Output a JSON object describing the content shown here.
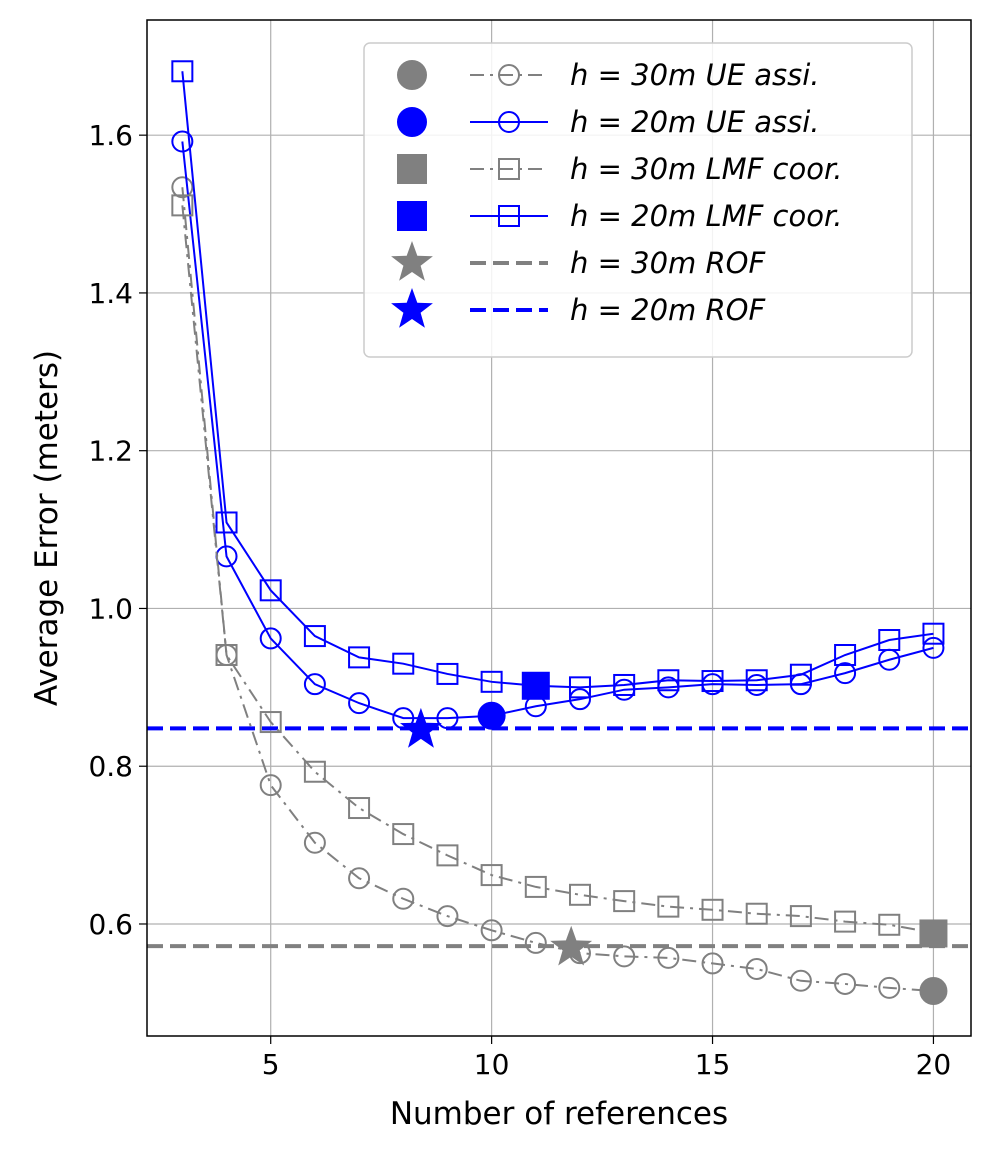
{
  "chart_data": {
    "type": "line",
    "title": "",
    "xlabel": "Number of references",
    "ylabel": "Average Error (meters)",
    "xlim": [
      2.2,
      20.85
    ],
    "ylim": [
      0.458,
      1.746
    ],
    "xticks": [
      5,
      10,
      15,
      20
    ],
    "yticks": [
      0.6,
      0.8,
      1.0,
      1.2,
      1.4,
      1.6
    ],
    "ytick_labels": [
      "0.6",
      "0.8",
      "1.0",
      "1.2",
      "1.4",
      "1.6"
    ],
    "xtick_labels": [
      "5",
      "10",
      "15",
      "20"
    ],
    "grid": true,
    "legend_position": "top-right",
    "x": [
      3,
      4,
      5,
      6,
      7,
      8,
      9,
      10,
      11,
      12,
      13,
      14,
      15,
      16,
      17,
      18,
      19,
      20
    ],
    "series": [
      {
        "name": "h = 30m UE assi.",
        "color": "#808080",
        "style": "dashdot",
        "marker": "circle",
        "values": [
          1.534,
          0.941,
          0.776,
          0.703,
          0.658,
          0.632,
          0.61,
          0.592,
          0.576,
          0.563,
          0.559,
          0.557,
          0.55,
          0.543,
          0.528,
          0.524,
          0.519,
          0.515
        ]
      },
      {
        "name": "h = 20m UE assi.",
        "color": "#0000ff",
        "style": "solid",
        "marker": "circle",
        "values": [
          1.592,
          1.066,
          0.962,
          0.904,
          0.88,
          0.861,
          0.861,
          0.864,
          0.876,
          0.885,
          0.897,
          0.9,
          0.904,
          0.903,
          0.904,
          0.918,
          0.935,
          0.95
        ]
      },
      {
        "name": "h = 30m LMF coor.",
        "color": "#808080",
        "style": "dashdot",
        "marker": "square",
        "values": [
          1.511,
          0.941,
          0.856,
          0.793,
          0.747,
          0.714,
          0.687,
          0.662,
          0.647,
          0.637,
          0.629,
          0.622,
          0.618,
          0.613,
          0.61,
          0.603,
          0.599,
          0.589
        ]
      },
      {
        "name": "h = 20m LMF coor.",
        "color": "#0000ff",
        "style": "solid",
        "marker": "square",
        "values": [
          1.681,
          1.109,
          1.023,
          0.965,
          0.938,
          0.93,
          0.917,
          0.907,
          0.902,
          0.9,
          0.903,
          0.909,
          0.908,
          0.909,
          0.916,
          0.941,
          0.96,
          0.968
        ]
      }
    ],
    "hlines": [
      {
        "name": "h = 30m ROF",
        "color": "#808080",
        "y": 0.572
      },
      {
        "name": "h = 20m ROF",
        "color": "#0000ff",
        "y": 0.848
      }
    ],
    "highlights": [
      {
        "series": "h = 30m UE assi.",
        "marker": "circle",
        "color": "#808080",
        "x": 20,
        "y": 0.515
      },
      {
        "series": "h = 20m UE assi.",
        "marker": "circle",
        "color": "#0000ff",
        "x": 10,
        "y": 0.864
      },
      {
        "series": "h = 30m LMF coor.",
        "marker": "square",
        "color": "#808080",
        "x": 20,
        "y": 0.588
      },
      {
        "series": "h = 20m LMF coor.",
        "marker": "square",
        "color": "#0000ff",
        "x": 11,
        "y": 0.902
      },
      {
        "series": "h = 30m ROF",
        "marker": "star",
        "color": "#808080",
        "x": 11.8,
        "y": 0.57
      },
      {
        "series": "h = 20m ROF",
        "marker": "star",
        "color": "#0000ff",
        "x": 8.4,
        "y": 0.846
      }
    ],
    "legend": [
      "h = 30m UE assi.",
      "h = 20m UE assi.",
      "h = 30m LMF coor.",
      "h = 20m LMF coor.",
      "h = 30m ROF",
      "h = 20m ROF"
    ]
  }
}
